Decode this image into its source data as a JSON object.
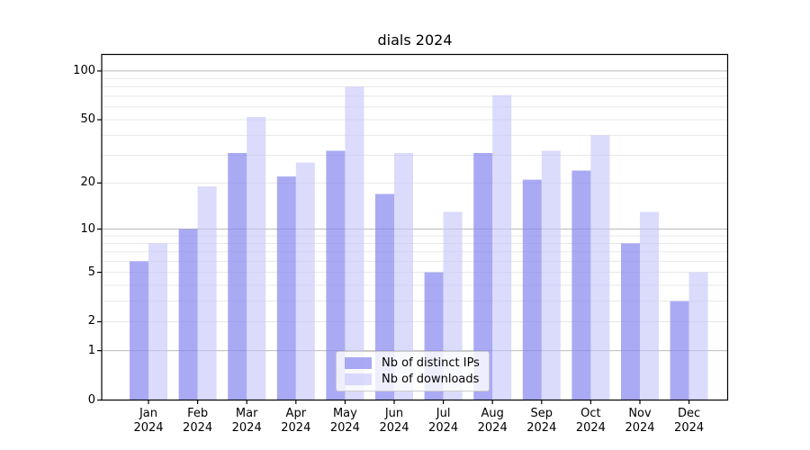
{
  "title": "dials 2024",
  "chart_data": {
    "type": "bar",
    "title": "dials 2024",
    "categories": [
      {
        "month": "Jan",
        "year": "2024"
      },
      {
        "month": "Feb",
        "year": "2024"
      },
      {
        "month": "Mar",
        "year": "2024"
      },
      {
        "month": "Apr",
        "year": "2024"
      },
      {
        "month": "May",
        "year": "2024"
      },
      {
        "month": "Jun",
        "year": "2024"
      },
      {
        "month": "Jul",
        "year": "2024"
      },
      {
        "month": "Aug",
        "year": "2024"
      },
      {
        "month": "Sep",
        "year": "2024"
      },
      {
        "month": "Oct",
        "year": "2024"
      },
      {
        "month": "Nov",
        "year": "2024"
      },
      {
        "month": "Dec",
        "year": "2024"
      }
    ],
    "series": [
      {
        "name": "Nb of distinct IPs",
        "color": "#8888ee",
        "fill": "rgba(134,134,239,0.70)",
        "values": [
          6,
          10,
          31,
          22,
          32,
          17,
          5,
          31,
          21,
          24,
          8,
          3
        ]
      },
      {
        "name": "Nb of downloads",
        "color": "#ccccff",
        "fill": "rgba(197,197,250,0.62)",
        "values": [
          8,
          19,
          52,
          27,
          80,
          31,
          13,
          71,
          32,
          40,
          13,
          5
        ]
      }
    ],
    "y_axis": {
      "scale": "log1p",
      "ticks": [
        0,
        1,
        2,
        5,
        10,
        20,
        50,
        100
      ],
      "major_ticks": [
        1,
        10,
        100
      ],
      "minor_gridlines": [
        3,
        4,
        6,
        7,
        8,
        9,
        30,
        40,
        60,
        70,
        80,
        90
      ],
      "top_value": 126
    },
    "grid": true,
    "legend": {
      "position": "bottom-center"
    }
  },
  "colors": {
    "major_grid": "#bbbbbb",
    "minor_grid": "#e8e8e8",
    "spine": "#000000"
  }
}
